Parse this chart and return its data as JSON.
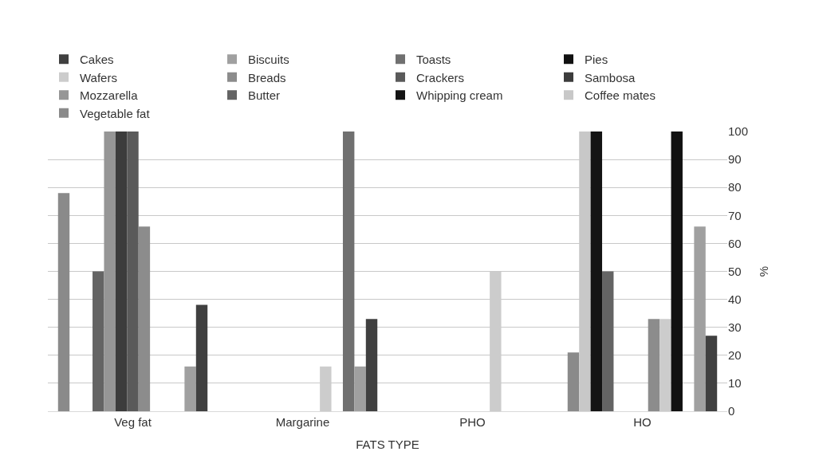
{
  "chart_data": {
    "type": "bar",
    "xlabel": "FATS TYPE",
    "ylabel": "%",
    "categories": [
      "Veg fat",
      "Margarine",
      "PHO",
      "HO"
    ],
    "series": [
      {
        "name": "Cakes",
        "color": "#404040",
        "values": [
          38,
          33,
          0,
          27
        ]
      },
      {
        "name": "Biscuits",
        "color": "#a0a0a0",
        "values": [
          16,
          16,
          0,
          66
        ]
      },
      {
        "name": "Toasts",
        "color": "#707070",
        "values": [
          0,
          100,
          0,
          0
        ]
      },
      {
        "name": "Pies",
        "color": "#111111",
        "values": [
          0,
          0,
          0,
          100
        ]
      },
      {
        "name": "Wafers",
        "color": "#cccccc",
        "values": [
          0,
          16,
          50,
          33
        ]
      },
      {
        "name": "Breads",
        "color": "#8c8c8c",
        "values": [
          66,
          0,
          0,
          33
        ]
      },
      {
        "name": "Crackers",
        "color": "#5a5a5a",
        "values": [
          100,
          0,
          0,
          0
        ]
      },
      {
        "name": "Sambosa",
        "color": "#3c3c3c",
        "values": [
          100,
          0,
          0,
          0
        ]
      },
      {
        "name": "Mozzarella",
        "color": "#969696",
        "values": [
          100,
          0,
          0,
          0
        ]
      },
      {
        "name": "Butter",
        "color": "#646464",
        "values": [
          50,
          0,
          0,
          50
        ]
      },
      {
        "name": "Whipping cream",
        "color": "#141414",
        "values": [
          0,
          0,
          0,
          100
        ]
      },
      {
        "name": "Coffee mates",
        "color": "#c8c8c8",
        "values": [
          0,
          0,
          0,
          100
        ]
      },
      {
        "name": "Vegetable fat",
        "color": "#8a8a8a",
        "values": [
          78,
          0,
          0,
          21
        ]
      }
    ],
    "ylim": [
      0,
      100
    ],
    "yticks": [
      0,
      10,
      20,
      30,
      40,
      50,
      60,
      70,
      80,
      90,
      100
    ],
    "grid": "y",
    "legend": "top"
  }
}
